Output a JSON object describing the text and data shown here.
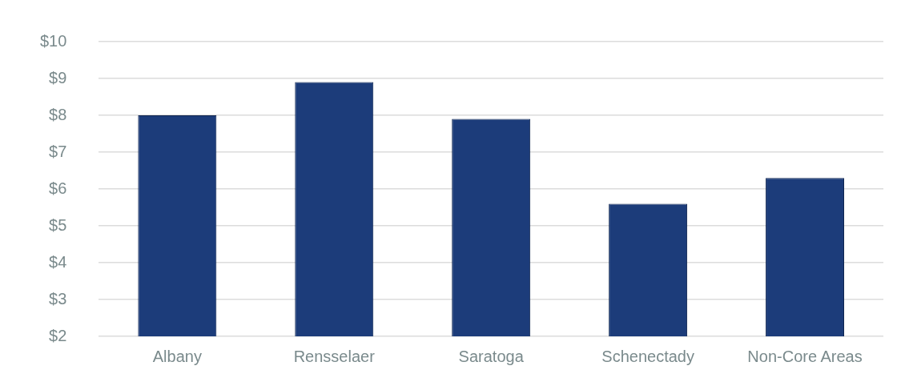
{
  "chart_data": {
    "type": "bar",
    "categories": [
      "Albany",
      "Rensselaer",
      "Saratoga",
      "Schenectady",
      "Non-Core Areas"
    ],
    "values": [
      8.0,
      8.9,
      7.9,
      5.6,
      6.3
    ],
    "color": "#1c3c7a",
    "ylim": [
      2,
      10
    ],
    "yticks": [
      {
        "value": 2,
        "label": "$2"
      },
      {
        "value": 3,
        "label": "$3"
      },
      {
        "value": 4,
        "label": "$4"
      },
      {
        "value": 5,
        "label": "$5"
      },
      {
        "value": 6,
        "label": "$6"
      },
      {
        "value": 7,
        "label": "$7"
      },
      {
        "value": 8,
        "label": "$8"
      },
      {
        "value": 9,
        "label": "$9"
      },
      {
        "value": 10,
        "label": "$10"
      }
    ],
    "grid": "y",
    "legend": false
  }
}
